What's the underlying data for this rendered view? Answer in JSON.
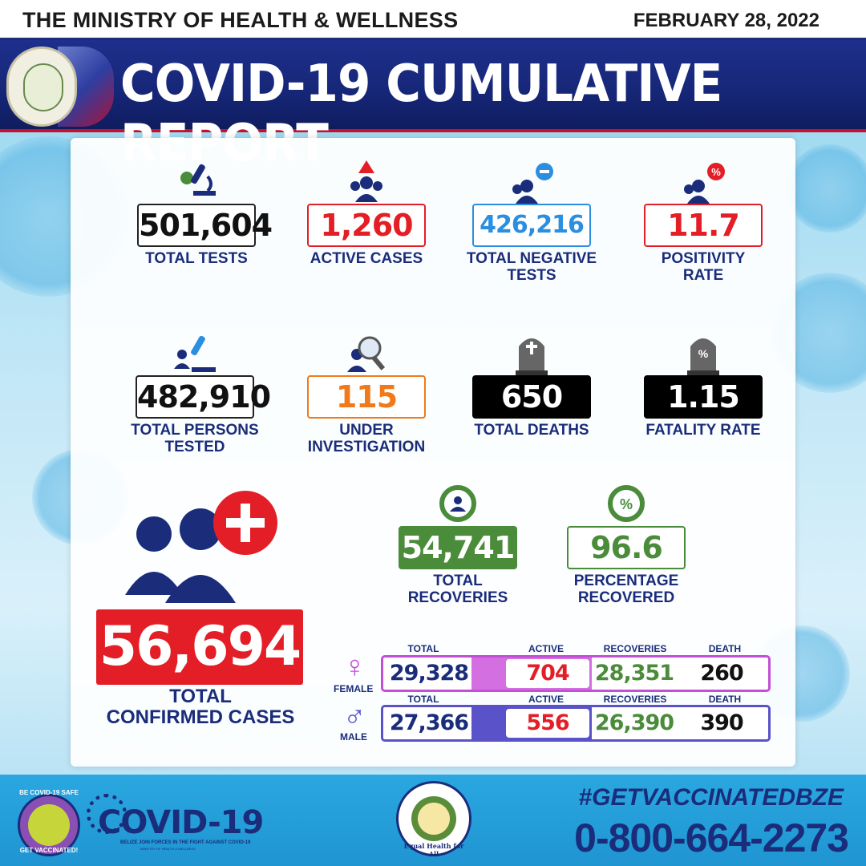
{
  "header": {
    "ministry": "THE MINISTRY OF HEALTH & WELLNESS",
    "date": "FEBRUARY 28, 2022",
    "title": "COVID-19 CUMULATIVE REPORT"
  },
  "stats_row1": [
    {
      "value": "501,604",
      "label": "TOTAL TESTS",
      "icon": "microscope-virus-icon"
    },
    {
      "value": "1,260",
      "label": "ACTIVE CASES",
      "icon": "people-alert-icon"
    },
    {
      "value": "426,216",
      "label": "TOTAL NEGATIVE TESTS",
      "icon": "people-minus-icon"
    },
    {
      "value": "11.7",
      "label": "POSITIVITY RATE",
      "icon": "people-percent-icon"
    }
  ],
  "stats_row2": [
    {
      "value": "482,910",
      "label": "TOTAL PERSONS TESTED",
      "icon": "people-microscope-icon"
    },
    {
      "value": "115",
      "label": "UNDER INVESTIGATION",
      "icon": "people-magnifier-icon"
    },
    {
      "value": "650",
      "label": "TOTAL DEATHS",
      "icon": "tombstone-cross-icon"
    },
    {
      "value": "1.15",
      "label": "FATALITY RATE",
      "icon": "tombstone-percent-icon"
    }
  ],
  "recoveries": [
    {
      "value": "54,741",
      "label": "TOTAL RECOVERIES",
      "icon": "recovery-people-icon"
    },
    {
      "value": "96.6",
      "label": "PERCENTAGE RECOVERED",
      "icon": "recovery-percent-icon"
    }
  ],
  "confirmed": {
    "value": "56,694",
    "label_line1": "TOTAL",
    "label_line2": "CONFIRMED CASES"
  },
  "gender_table": {
    "headers": {
      "total": "TOTAL",
      "active": "ACTIVE",
      "recoveries": "RECOVERIES",
      "death": "DEATH"
    },
    "female": {
      "name": "FEMALE",
      "symbol": "♀",
      "total": "29,328",
      "active": "704",
      "recoveries": "28,351",
      "death": "260"
    },
    "male": {
      "name": "MALE",
      "symbol": "♂",
      "total": "27,366",
      "active": "556",
      "recoveries": "26,390",
      "death": "390"
    }
  },
  "footer": {
    "hashtag": "#GETVACCINATEDBZE",
    "phone": "0-800-664-2273",
    "covid_logo": "COVID-19",
    "covid_tagline": "BELIZE JOIN FORCES IN THE FIGHT AGAINST COVID-19",
    "covid_subtagline": "MINISTRY OF HEALTH & WELLNESS",
    "vacc_badge_top": "BE COVID-19 SAFE",
    "vacc_badge_bottom": "GET VACCINATED!",
    "moh_seal_text": "Equal Health for All"
  },
  "colors": {
    "navy": "#1a2c7a",
    "red": "#e41e26",
    "blue": "#2a8fe0",
    "orange": "#f07a1b",
    "green": "#4a8c3a",
    "female": "#c24fd6",
    "male": "#5a52c8"
  }
}
